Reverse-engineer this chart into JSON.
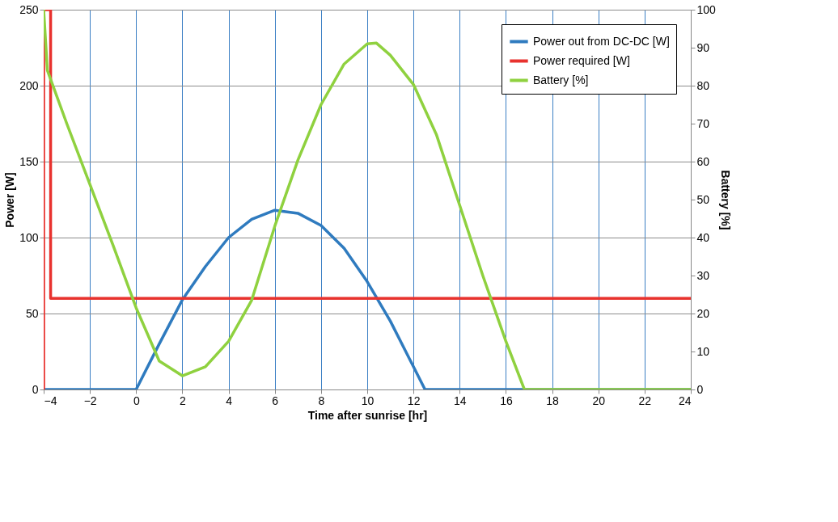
{
  "chart_data": {
    "type": "line",
    "xlabel": "Time after sunrise [hr]",
    "ylabel": "Power [W]",
    "y2label": "Battery [%]",
    "xlim": [
      -4,
      24
    ],
    "xticks": [
      -4,
      -2,
      0,
      2,
      4,
      6,
      8,
      10,
      12,
      14,
      16,
      18,
      20,
      22,
      24
    ],
    "ylim": [
      0,
      250
    ],
    "yticks": [
      0,
      50,
      100,
      150,
      200,
      250
    ],
    "y2lim": [
      0,
      100
    ],
    "y2ticks": [
      0,
      10,
      20,
      30,
      40,
      50,
      60,
      70,
      80,
      90,
      100
    ],
    "grid": true,
    "legend": "top right",
    "marker": "none",
    "line_style": "solid",
    "series": [
      {
        "name": "Power out from DC-DC [W]",
        "color": "#2f7bbf",
        "x": [
          -4,
          0,
          1,
          2,
          3,
          4,
          5,
          6,
          7,
          8,
          9,
          10,
          11,
          12,
          12.5,
          24
        ],
        "values": [
          0,
          0,
          30,
          59,
          81,
          100,
          112,
          118,
          116,
          108,
          93,
          71,
          45,
          15,
          0,
          0
        ]
      },
      {
        "name": "Power required [W]",
        "color": "#e8322e",
        "x": [
          -4,
          -4,
          -3.7,
          -3.7,
          24
        ],
        "values": [
          0,
          250,
          250,
          60,
          60
        ]
      },
      {
        "name": "Battery [%]",
        "color": "#8fd13f",
        "axis": "y2",
        "x": [
          -4,
          -3.84,
          -3,
          -2,
          -1,
          0,
          1,
          2,
          3,
          4,
          5,
          6,
          7,
          8,
          9,
          10,
          10.4,
          11,
          12,
          13,
          14,
          15,
          16,
          16.8,
          24
        ],
        "values": [
          100,
          84,
          70,
          54,
          38,
          21.5,
          7.5,
          3.6,
          6,
          12.7,
          23.5,
          43,
          60.4,
          75,
          85.7,
          91,
          91.2,
          88,
          80.3,
          67,
          48.5,
          30,
          12.7,
          0,
          0
        ]
      }
    ]
  }
}
